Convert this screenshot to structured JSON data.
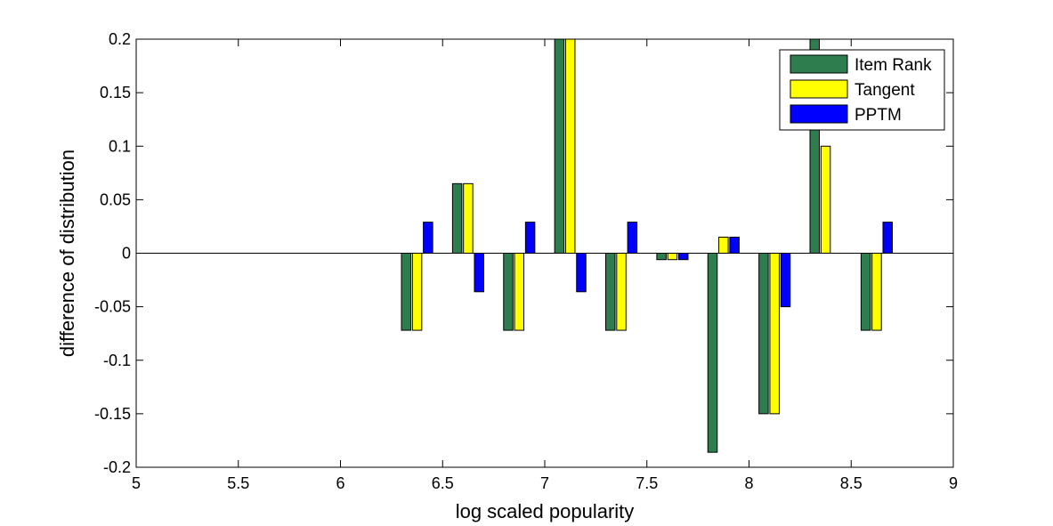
{
  "chart_data": {
    "type": "bar",
    "title": "",
    "xlabel": "log scaled popularity",
    "ylabel": "difference of distribution",
    "xlim": [
      5,
      9
    ],
    "ylim": [
      -0.2,
      0.2
    ],
    "xticks": [
      5,
      5.5,
      6,
      6.5,
      7,
      7.5,
      8,
      8.5,
      9
    ],
    "xtick_labels": [
      "5",
      "5.5",
      "6",
      "6.5",
      "7",
      "7.5",
      "8",
      "8.5",
      "9"
    ],
    "yticks": [
      -0.2,
      -0.15,
      -0.1,
      -0.05,
      0,
      0.05,
      0.1,
      0.15,
      0.2
    ],
    "ytick_labels": [
      "-0.2",
      "-0.15",
      "-0.1",
      "-0.05",
      "0",
      "0.05",
      "0.1",
      "0.15",
      "0.2"
    ],
    "x": [
      6.375,
      6.625,
      6.875,
      7.125,
      7.375,
      7.625,
      7.875,
      8.125,
      8.375,
      8.625
    ],
    "series": [
      {
        "name": "Item Rank",
        "color": "#2e7d4f",
        "values": [
          -0.072,
          0.065,
          -0.072,
          0.2,
          -0.072,
          -0.006,
          -0.186,
          -0.15,
          0.2,
          -0.072
        ]
      },
      {
        "name": "Tangent",
        "color": "#ffff00",
        "values": [
          -0.072,
          0.065,
          -0.072,
          0.2,
          -0.072,
          -0.006,
          0.015,
          -0.15,
          0.1,
          -0.072
        ]
      },
      {
        "name": "PPTM",
        "color": "#0000ff",
        "values": [
          0.029,
          -0.036,
          0.029,
          -0.036,
          0.029,
          -0.006,
          0.015,
          -0.05,
          0.0,
          0.029
        ]
      }
    ],
    "legend_position": "top-right",
    "grid": false
  }
}
